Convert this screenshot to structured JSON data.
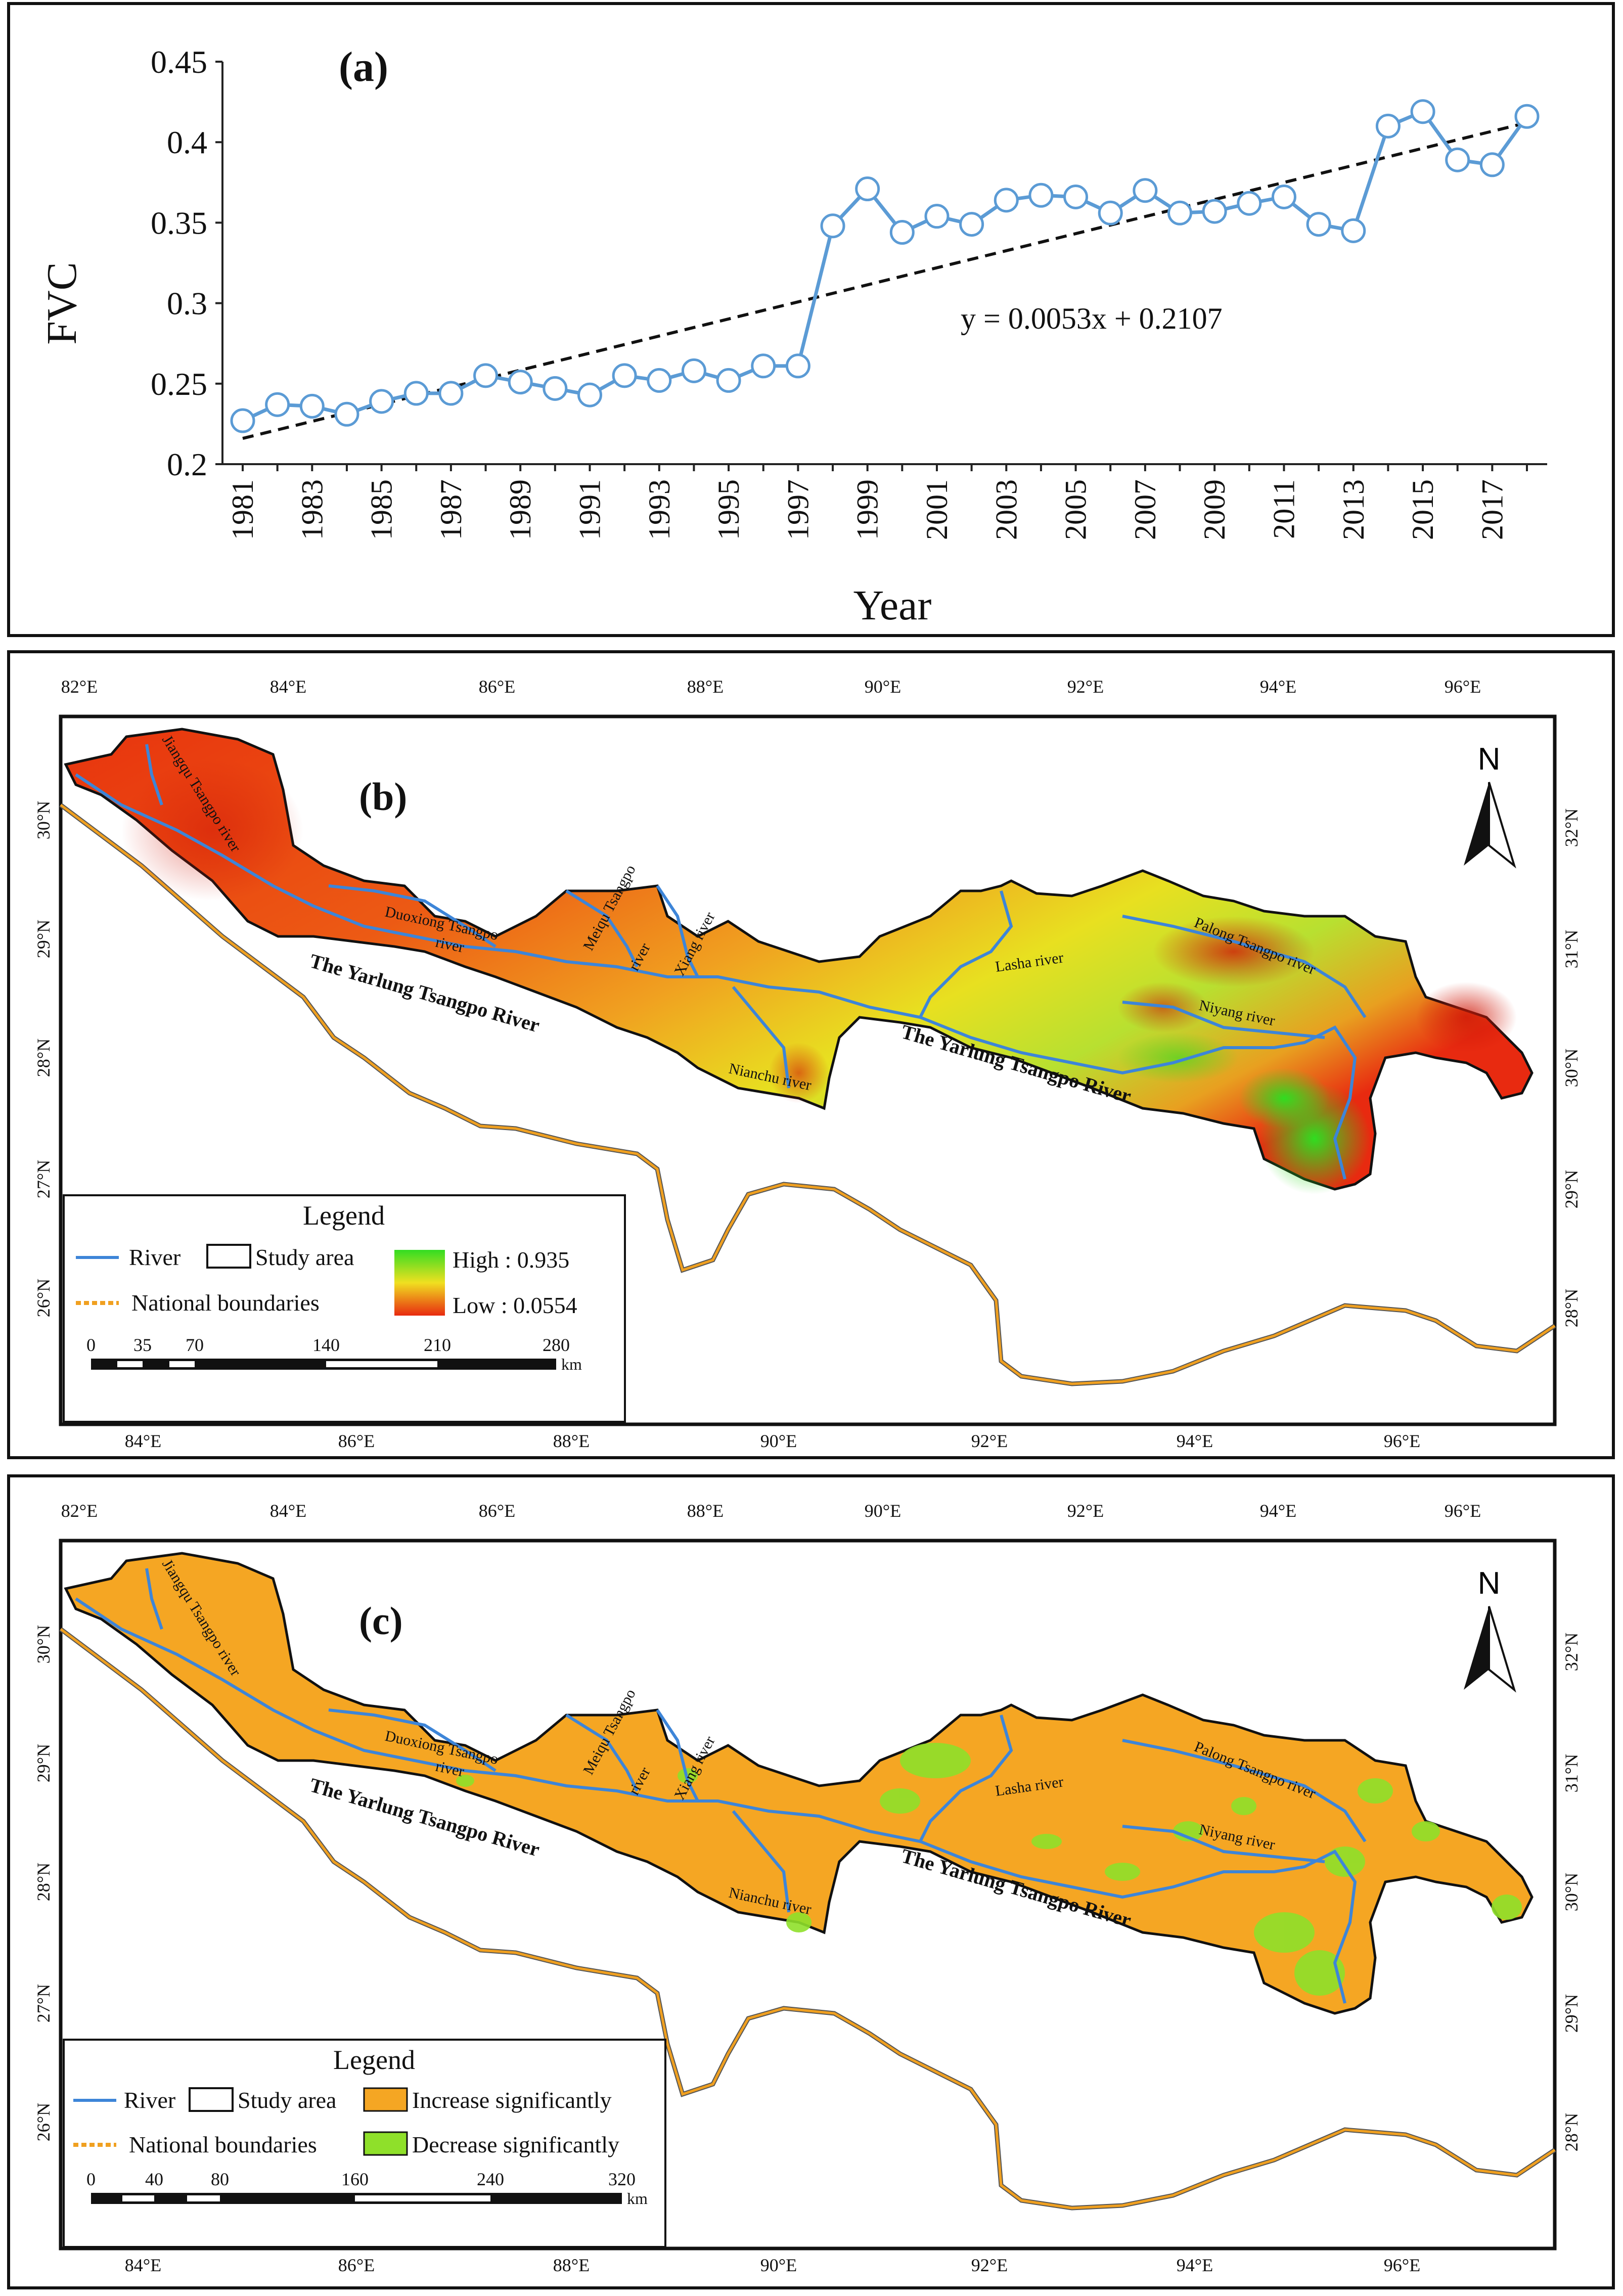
{
  "panel_a": {
    "panel_label": "(a)",
    "equation": "y = 0.0053x + 0.2107"
  },
  "chart_data": {
    "type": "line",
    "xlabel": "Year",
    "ylabel": "FVC",
    "ylim": [
      0.2,
      0.45
    ],
    "yticks": [
      0.2,
      0.25,
      0.3,
      0.35,
      0.4,
      0.45
    ],
    "ytick_labels": [
      "0.2",
      "0.25",
      "0.3",
      "0.35",
      "0.4",
      "0.45"
    ],
    "xtick_labels": [
      "1981",
      "1983",
      "1985",
      "1987",
      "1989",
      "1991",
      "1993",
      "1995",
      "1997",
      "1999",
      "2001",
      "2003",
      "2005",
      "2007",
      "2009",
      "2011",
      "2013",
      "2015",
      "2017"
    ],
    "x": [
      1981,
      1982,
      1983,
      1984,
      1985,
      1986,
      1987,
      1988,
      1989,
      1990,
      1991,
      1992,
      1993,
      1994,
      1995,
      1996,
      1997,
      1998,
      1999,
      2000,
      2001,
      2002,
      2003,
      2004,
      2005,
      2006,
      2007,
      2008,
      2009,
      2010,
      2011,
      2012,
      2013,
      2014,
      2015,
      2016,
      2017,
      2018
    ],
    "series": [
      {
        "values": [
          0.227,
          0.237,
          0.236,
          0.231,
          0.239,
          0.244,
          0.244,
          0.255,
          0.251,
          0.247,
          0.243,
          0.255,
          0.252,
          0.258,
          0.252,
          0.261,
          0.261,
          0.348,
          0.371,
          0.344,
          0.354,
          0.349,
          0.364,
          0.367,
          0.366,
          0.356,
          0.37,
          0.356,
          0.357,
          0.362,
          0.366,
          0.349,
          0.345,
          0.41,
          0.419,
          0.389,
          0.386,
          0.416
        ],
        "color": "#5b9bd5"
      }
    ],
    "trendline": {
      "slope": 0.0053,
      "intercept": 0.2107,
      "style": "dashed",
      "color": "#111111"
    },
    "grid": false
  },
  "maps": {
    "top_lon_labels": [
      "82°E",
      "84°E",
      "86°E",
      "88°E",
      "90°E",
      "92°E",
      "94°E",
      "96°E"
    ],
    "bottom_lon_labels": [
      "84°E",
      "86°E",
      "88°E",
      "90°E",
      "92°E",
      "94°E",
      "96°E"
    ],
    "left_lat_labels": [
      "30°N",
      "29°N",
      "28°N",
      "27°N",
      "26°N"
    ],
    "right_lat_labels": [
      "32°N",
      "31°N",
      "30°N",
      "29°N",
      "28°N"
    ],
    "north": "N",
    "river_labels": {
      "jiangqu": "Jiangqu Tsangpo river",
      "duoxiong": "Duoxiong Tsangpo",
      "duoxiong2": "river",
      "meiqu": "Meiqu Tsangpo",
      "meiqu2": "river",
      "xiang": "Xiang river",
      "nianchu": "Nianchu river",
      "lasha": "Lasha river",
      "palong": "Palong Tsangpo river",
      "niyang": "Niyang river",
      "yarlung1": "The Yarlung Tsangpo River",
      "yarlung2": "The Yarlung Tsangpo River"
    }
  },
  "panel_b": {
    "panel_label": "(b)",
    "legend": {
      "title": "Legend",
      "river": "River",
      "study_area": "Study area",
      "national": "National boundaries",
      "high": "High : 0.935",
      "low": "Low : 0.0554",
      "scale_ticks": [
        "0",
        "35",
        "70",
        "140",
        "210",
        "280"
      ],
      "scale_unit": "km"
    },
    "colors": {
      "high": "#33dd22",
      "mid": "#f0e020",
      "low": "#e82a10"
    }
  },
  "panel_c": {
    "panel_label": "(c)",
    "legend": {
      "title": "Legend",
      "river": "River",
      "study_area": "Study area",
      "increase": "Increase significantly",
      "decrease": "Decrease significantly",
      "national": "National boundaries",
      "scale_ticks": [
        "0",
        "40",
        "80",
        "160",
        "240",
        "320"
      ],
      "scale_unit": "km"
    },
    "colors": {
      "increase": "#f5a623",
      "decrease": "#8fe02a"
    }
  },
  "colors": {
    "river": "#3d85d8",
    "boundary": "#f0a020",
    "boundary_line": "#555555"
  }
}
